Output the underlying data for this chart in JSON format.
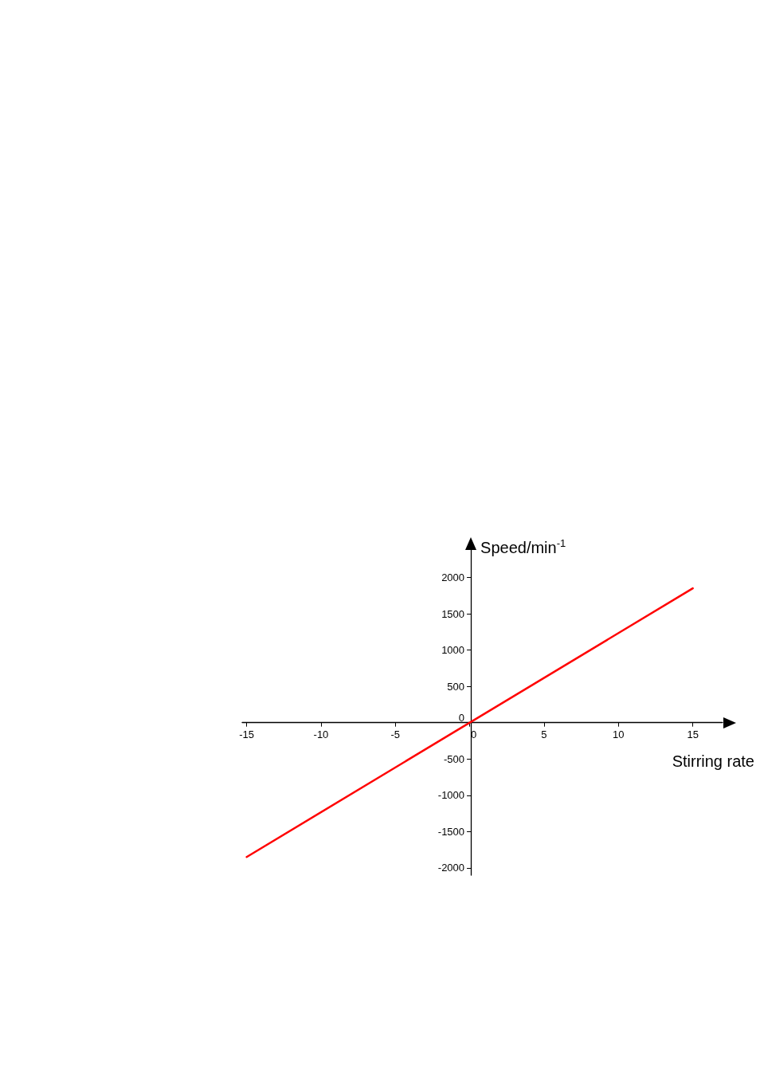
{
  "chart_data": {
    "type": "line",
    "xlabel": "Stirring rate",
    "ylabel": "Speed/min$^{-1}$",
    "x": [
      -15,
      15
    ],
    "series": [
      {
        "color": "#ff0000",
        "values": [
          -1850,
          1850
        ]
      }
    ],
    "xlim": [
      -15.3,
      17
    ],
    "xticks": [
      -15,
      -10,
      -5,
      0,
      5,
      10,
      15
    ],
    "ylim": [
      -2100,
      2400
    ],
    "yticks": [
      -2000,
      -1500,
      -1000,
      -500,
      0,
      500,
      1000,
      1500,
      2000
    ],
    "marker": "none",
    "line_style": "solid"
  }
}
